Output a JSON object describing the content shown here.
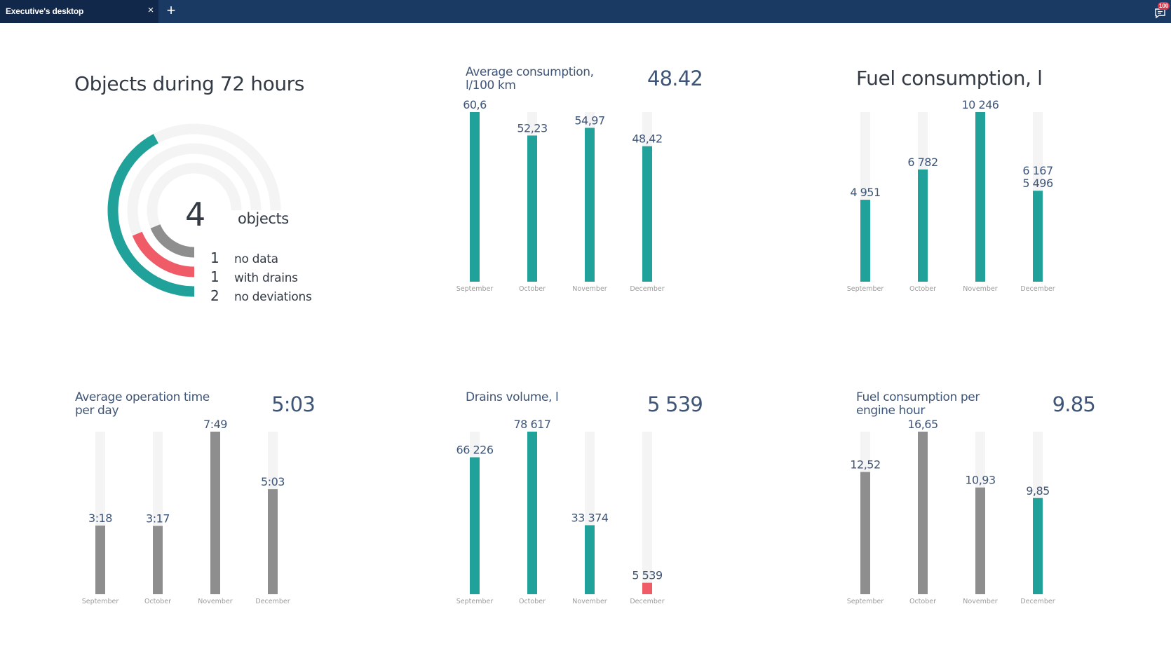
{
  "tab": {
    "title": "Executive's desktop",
    "close_icon": "×",
    "add_icon": "+"
  },
  "notifications": {
    "count": "100",
    "icon": "message-icon"
  },
  "colors": {
    "teal": "#20a29a",
    "gray": "#8e8e8e",
    "red": "#ef5b67",
    "track": "#f4f4f4",
    "header": "#1b3a63"
  },
  "objects": {
    "title": "Objects during 72 hours",
    "total": "4",
    "total_label": "objects",
    "rings": [
      {
        "count": "1",
        "label": "no data",
        "color": "#8e8e8e",
        "fraction": 0.25
      },
      {
        "count": "1",
        "label": "with drains",
        "color": "#ef5b67",
        "fraction": 0.25
      },
      {
        "count": "2",
        "label": "no deviations",
        "color": "#20a29a",
        "fraction": 0.5
      }
    ]
  },
  "chart_data": [
    {
      "id": "avg_consumption",
      "type": "bar",
      "title": "Average consumption,\nl/100 km",
      "total": "48.42",
      "categories": [
        "September",
        "October",
        "November",
        "December"
      ],
      "values": [
        60.6,
        52.23,
        54.97,
        48.42
      ],
      "labels": [
        "60,6",
        "52,23",
        "54,97",
        "48,42"
      ],
      "colors": [
        "#20a29a",
        "#20a29a",
        "#20a29a",
        "#20a29a"
      ],
      "ylim": [
        0,
        60.6
      ]
    },
    {
      "id": "fuel_consumption",
      "type": "bar",
      "title": "Fuel consumption, l",
      "total": "",
      "categories": [
        "September",
        "October",
        "November",
        "December"
      ],
      "values": [
        4951,
        6782,
        10246,
        5496
      ],
      "labels": [
        "4 951",
        "6 782",
        "10 246",
        "5 496"
      ],
      "extra_labels": [
        "",
        "",
        "",
        "6 167"
      ],
      "colors": [
        "#20a29a",
        "#20a29a",
        "#20a29a",
        "#20a29a"
      ],
      "ylim": [
        0,
        10246
      ]
    },
    {
      "id": "avg_operation_time",
      "type": "bar",
      "title": "Average operation time\nper day",
      "total": "5:03",
      "categories": [
        "September",
        "October",
        "November",
        "December"
      ],
      "values": [
        198,
        197,
        469,
        303
      ],
      "labels": [
        "3:18",
        "3:17",
        "7:49",
        "5:03"
      ],
      "colors": [
        "#8e8e8e",
        "#8e8e8e",
        "#8e8e8e",
        "#8e8e8e"
      ],
      "ylim": [
        0,
        469
      ]
    },
    {
      "id": "drains_volume",
      "type": "bar",
      "title": "Drains volume, l",
      "total": "5 539",
      "categories": [
        "September",
        "October",
        "November",
        "December"
      ],
      "values": [
        66226,
        78617,
        33374,
        5539
      ],
      "labels": [
        "66 226",
        "78 617",
        "33 374",
        "5 539"
      ],
      "colors": [
        "#20a29a",
        "#20a29a",
        "#20a29a",
        "#ef5b67"
      ],
      "ylim": [
        0,
        78617
      ]
    },
    {
      "id": "fuel_per_engine_hour",
      "type": "bar",
      "title": "Fuel consumption per\nengine hour",
      "total": "9.85",
      "categories": [
        "September",
        "October",
        "November",
        "December"
      ],
      "values": [
        12.52,
        16.65,
        10.93,
        9.85
      ],
      "labels": [
        "12,52",
        "16,65",
        "10,93",
        "9,85"
      ],
      "colors": [
        "#8e8e8e",
        "#8e8e8e",
        "#8e8e8e",
        "#20a29a"
      ],
      "ylim": [
        0,
        16.65
      ]
    }
  ]
}
